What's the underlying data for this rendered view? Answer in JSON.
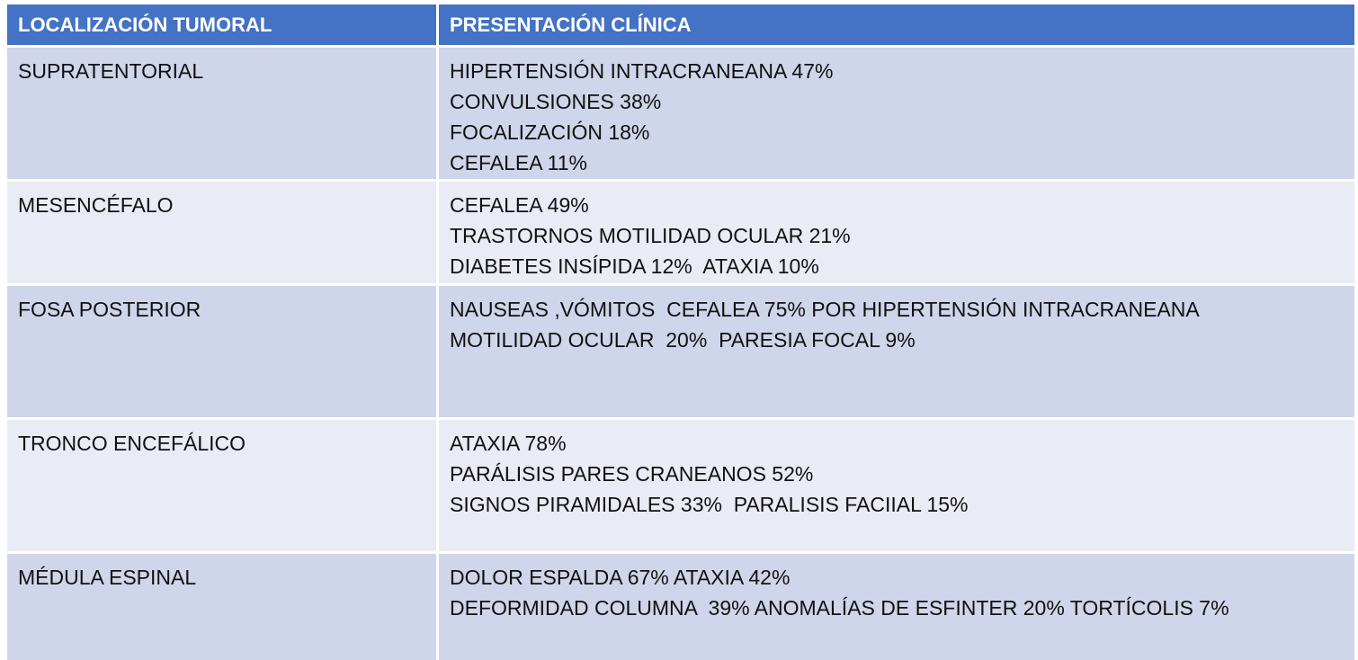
{
  "table": {
    "headers": [
      "LOCALIZACIÓN TUMORAL",
      "PRESENTACIÓN CLÍNICA"
    ],
    "rows": [
      {
        "location": "SUPRATENTORIAL",
        "presentation": [
          "HIPERTENSIÓN INTRACRANEANA 47%",
          "CONVULSIONES 38%",
          "FOCALIZACIÓN 18%",
          "CEFALEA 11%"
        ]
      },
      {
        "location": "MESENCÉFALO",
        "presentation": [
          "CEFALEA 49%",
          "TRASTORNOS MOTILIDAD OCULAR 21%",
          "DIABETES INSÍPIDA 12%  ATAXIA 10%"
        ]
      },
      {
        "location": "FOSA POSTERIOR",
        "presentation": [
          "NAUSEAS ,VÓMITOS  CEFALEA 75% POR HIPERTENSIÓN INTRACRANEANA",
          "MOTILIDAD OCULAR  20%  PARESIA FOCAL 9%"
        ]
      },
      {
        "location": "TRONCO ENCEFÁLICO",
        "presentation": [
          "ATAXIA 78%",
          "PARÁLISIS PARES CRANEANOS 52%",
          "SIGNOS PIRAMIDALES 33%  PARALISIS FACIIAL 15%"
        ]
      },
      {
        "location": "MÉDULA ESPINAL",
        "presentation": [
          "DOLOR ESPALDA 67% ATAXIA 42%",
          "DEFORMIDAD COLUMNA  39% ANOMALÍAS DE ESFINTER 20% TORTÍCOLIS 7%"
        ]
      }
    ]
  },
  "colors": {
    "header_bg": "#4472c4",
    "row_dark": "#cfd5ea",
    "row_light": "#e9ebf5"
  }
}
